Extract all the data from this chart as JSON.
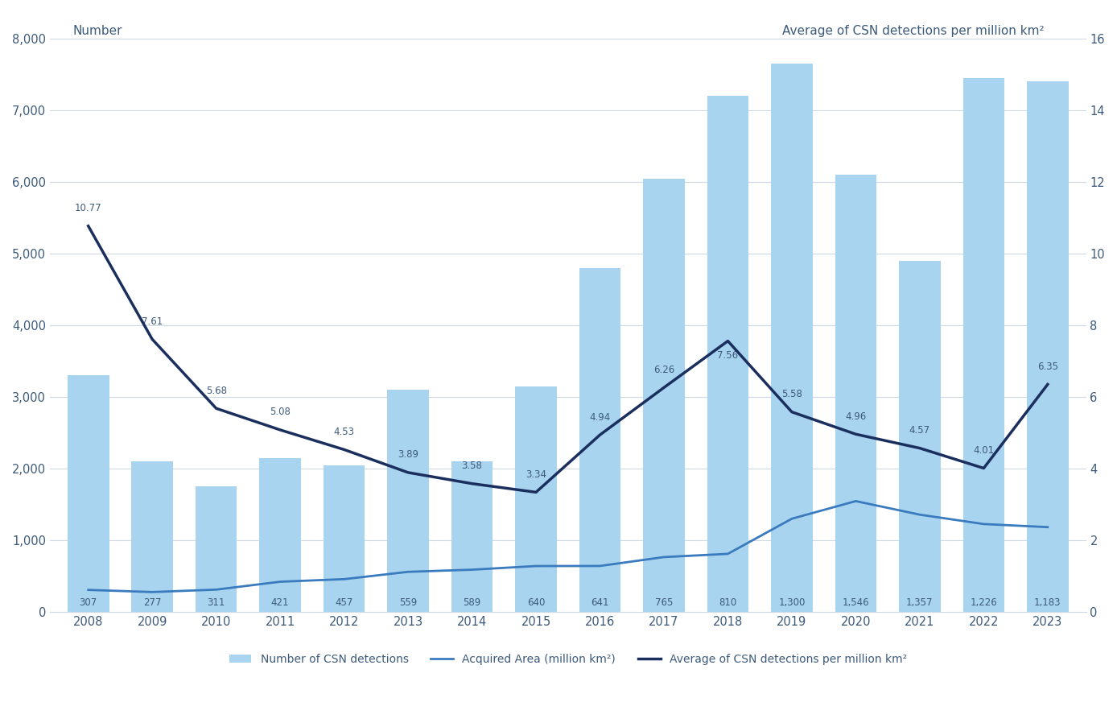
{
  "years": [
    2008,
    2009,
    2010,
    2011,
    2012,
    2013,
    2014,
    2015,
    2016,
    2017,
    2018,
    2019,
    2020,
    2021,
    2022,
    2023
  ],
  "bar_heights": [
    3300,
    2100,
    1750,
    2150,
    2050,
    3100,
    2100,
    3150,
    4800,
    6050,
    7200,
    7650,
    6100,
    4900,
    7450,
    7400
  ],
  "bar_numbers": [
    307,
    277,
    311,
    421,
    457,
    559,
    589,
    640,
    641,
    765,
    810,
    1300,
    1546,
    1357,
    1226,
    1183
  ],
  "acquired_area": [
    307,
    277,
    311,
    421,
    457,
    559,
    589,
    640,
    641,
    765,
    810,
    1300,
    1546,
    1357,
    1226,
    1183
  ],
  "avg_csn": [
    10.77,
    7.61,
    5.68,
    5.08,
    4.53,
    3.89,
    3.58,
    3.34,
    4.94,
    6.26,
    7.56,
    5.58,
    4.96,
    4.57,
    4.01,
    6.35
  ],
  "bar_color": "#a8d4f0",
  "line1_color": "#3a7bbf",
  "line2_color": "#1b2f5e",
  "left_ylabel": "Number",
  "right_ylabel": "Average of CSN detections per million km²",
  "left_ylim": [
    0,
    8000
  ],
  "right_ylim": [
    0,
    16
  ],
  "left_yticks": [
    0,
    1000,
    2000,
    3000,
    4000,
    5000,
    6000,
    7000,
    8000
  ],
  "right_yticks": [
    0,
    2,
    4,
    6,
    8,
    10,
    12,
    14,
    16
  ],
  "legend_labels": [
    "Number of CSN detections",
    "Acquired Area (million km²)",
    "Average of CSN detections per million km²"
  ],
  "text_color": "#3d5a7a",
  "grid_color": "#d0d8e4",
  "background_color": "#ffffff",
  "bar_label_fontsize": 8.5,
  "line_label_fontsize": 8.5,
  "tick_fontsize": 10.5,
  "ylabel_fontsize": 11
}
